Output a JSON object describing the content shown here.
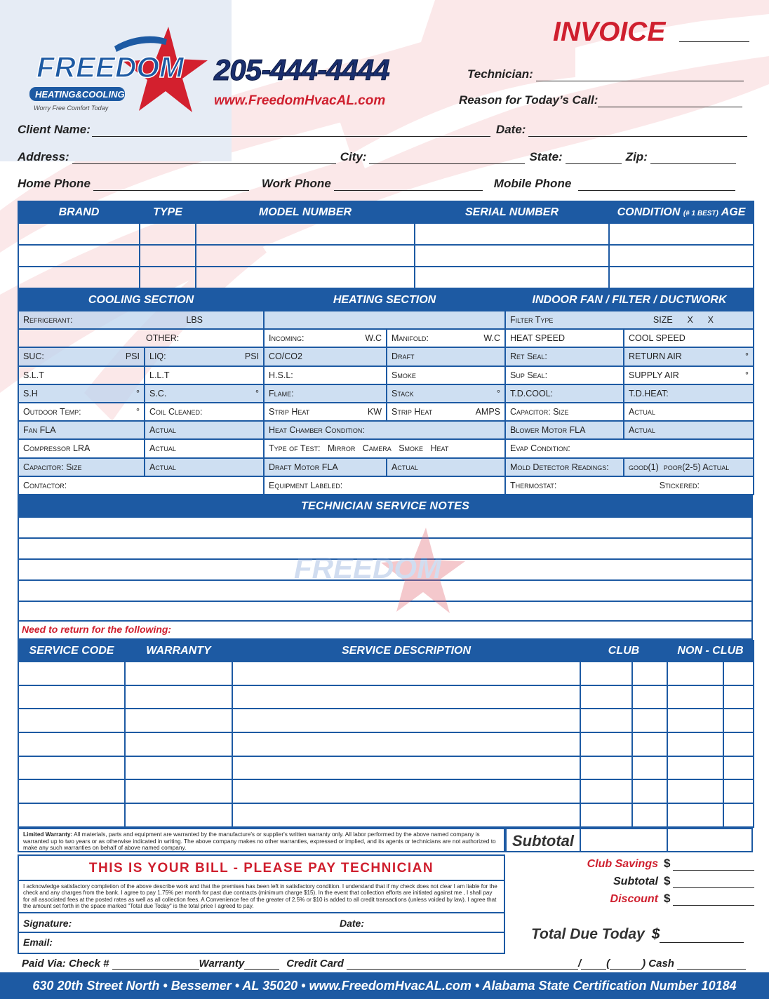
{
  "header": {
    "title": "INVOICE",
    "phone": "205-444-4444",
    "website": "www.FreedomHvacAL.com"
  },
  "logo": {
    "name": "FREEDOM",
    "sub": "HEATING&COOLING",
    "tagline": "Worry Free Comfort Today"
  },
  "fields": {
    "technician": "Technician:",
    "reason": "Reason for Today’s Call:",
    "client_name": "Client Name:",
    "date": "Date:",
    "address": "Address:",
    "city": "City:",
    "state": "State:",
    "zip": "Zip:",
    "home_phone": "Home Phone",
    "work_phone": "Work Phone",
    "mobile_phone": "Mobile Phone"
  },
  "equipment": {
    "headers": [
      "BRAND",
      "TYPE",
      "MODEL NUMBER",
      "SERIAL NUMBER"
    ],
    "condition": "CONDITION",
    "condition_note": "(# 1 BEST)",
    "age": "AGE"
  },
  "sections": {
    "cooling": "COOLING SECTION",
    "heating": "HEATING SECTION",
    "indoor": "INDOOR FAN / FILTER / DUCTWORK"
  },
  "grid": [
    [
      [
        "Refrigerant:",
        "LBS"
      ],
      [
        "",
        ""
      ],
      [
        "Filter Type",
        "SIZE      X      X"
      ]
    ],
    [
      [
        "",
        "OTHER:"
      ],
      [
        "Incoming:",
        "W.C"
      ],
      [
        "Manifold:",
        "W.C"
      ],
      [
        "HEAT SPEED",
        ""
      ],
      [
        "COOL SPEED",
        ""
      ]
    ],
    [
      [
        "SUC:",
        "PSI"
      ],
      [
        "LIQ:",
        "PSI"
      ],
      [
        "CO/CO2",
        ""
      ],
      [
        "Draft",
        ""
      ],
      [
        "Ret Seal:",
        ""
      ],
      [
        "RETURN AIR",
        "°"
      ]
    ],
    [
      [
        "S.L.T",
        ""
      ],
      [
        "L.L.T",
        ""
      ],
      [
        "H.S.L:",
        ""
      ],
      [
        "Smoke",
        ""
      ],
      [
        "Sup Seal:",
        ""
      ],
      [
        "SUPPLY AIR",
        "°"
      ]
    ],
    [
      [
        "S.H",
        "°"
      ],
      [
        "S.C.",
        "°"
      ],
      [
        "Flame:",
        ""
      ],
      [
        "Stack",
        "°"
      ],
      [
        "T.D.COOL:",
        ""
      ],
      [
        "T.D.HEAT:",
        ""
      ]
    ],
    [
      [
        "Outdoor Temp:",
        "°"
      ],
      [
        "Coil Cleaned:",
        ""
      ],
      [
        "Strip Heat",
        "KW"
      ],
      [
        "Strip Heat",
        "AMPS"
      ],
      [
        "Capacitor: Size",
        ""
      ],
      [
        "Actual",
        ""
      ]
    ],
    [
      [
        "Fan FLA",
        ""
      ],
      [
        "Actual",
        ""
      ],
      [
        "Heat Chamber Condition:",
        ""
      ],
      [
        "Blower Motor FLA",
        ""
      ],
      [
        "Actual",
        ""
      ]
    ],
    [
      [
        "Compressor LRA",
        ""
      ],
      [
        "Actual",
        ""
      ],
      [
        "Type of Test:   Mirror   Camera   Smoke   Heat",
        ""
      ],
      [
        "Evap Condition:",
        ""
      ]
    ],
    [
      [
        "Capacitor: Size",
        ""
      ],
      [
        "Actual",
        ""
      ],
      [
        "Draft Motor FLA",
        ""
      ],
      [
        "Actual",
        ""
      ],
      [
        "Mold Detector Readings:",
        ""
      ],
      [
        "good(1)  poor(2-5) Actual",
        ""
      ]
    ],
    [
      [
        "Contactor:",
        ""
      ],
      [
        "Equipment Labeled:",
        ""
      ],
      [
        "Thermostat:",
        "Stickered:"
      ]
    ]
  ],
  "notes": {
    "title": "TECHNICIAN SERVICE NOTES",
    "return_label": "Need to return for the following:"
  },
  "service": {
    "headers": [
      "SERVICE CODE",
      "WARRANTY",
      "SERVICE DESCRIPTION",
      "CLUB",
      "NON - CLUB"
    ]
  },
  "warranty_text": {
    "label": "Limited Warranty:",
    "body": " All materials, parts and equipment are warranted by the manufacture's or supplier's written warranty only. All labor performed by the above named company is warranted up to two years or as otherwise indicated in writing. The above company makes no other warranties, expressed or implied, and its agents or technicians are not authorized to make any such warranties on behalf of above named company."
  },
  "bill": {
    "title": "THIS IS YOUR BILL - PLEASE PAY TECHNICIAN",
    "ack": "I acknowledge satisfactory completion of the above describe work and that the premises has been left in satisfactory condition. I understand that if my check does not clear I am liable for the check and any charges from the bank. I agree to pay 1.75% per month for past due contracts (minimum charge $15). In the event that collection efforts are initiated against me , I shall pay for all associated fees at the posted rates as well as all collection fees. A Convenience fee of the greater of 2.5% or $10 is added to all credit  transactions (unless voided by law).  I agree that the amount set forth in the space marked \"Total due Today\" is the total price I agreed to pay.",
    "signature": "Signature:",
    "date": "Date:",
    "email": "Email:"
  },
  "totals": {
    "subtotal_cell": "Subtotal",
    "club_savings": "Club Savings",
    "subtotal": "Subtotal",
    "discount": "Discount",
    "currency": "$",
    "total_due": "Total Due Today"
  },
  "payment": {
    "check": "Paid Via: Check #",
    "warranty": "Warranty",
    "credit": "Credit Card",
    "slash": "/",
    "paren_open": "(",
    "cash": ") Cash"
  },
  "footer": "630 20th Street North • Bessemer • AL 35020 • www.FreedomHvacAL.com • Alabama State Certification Number 10184",
  "colors": {
    "brand_blue": "#1d5aa3",
    "accent_red": "#cf1f2e"
  }
}
